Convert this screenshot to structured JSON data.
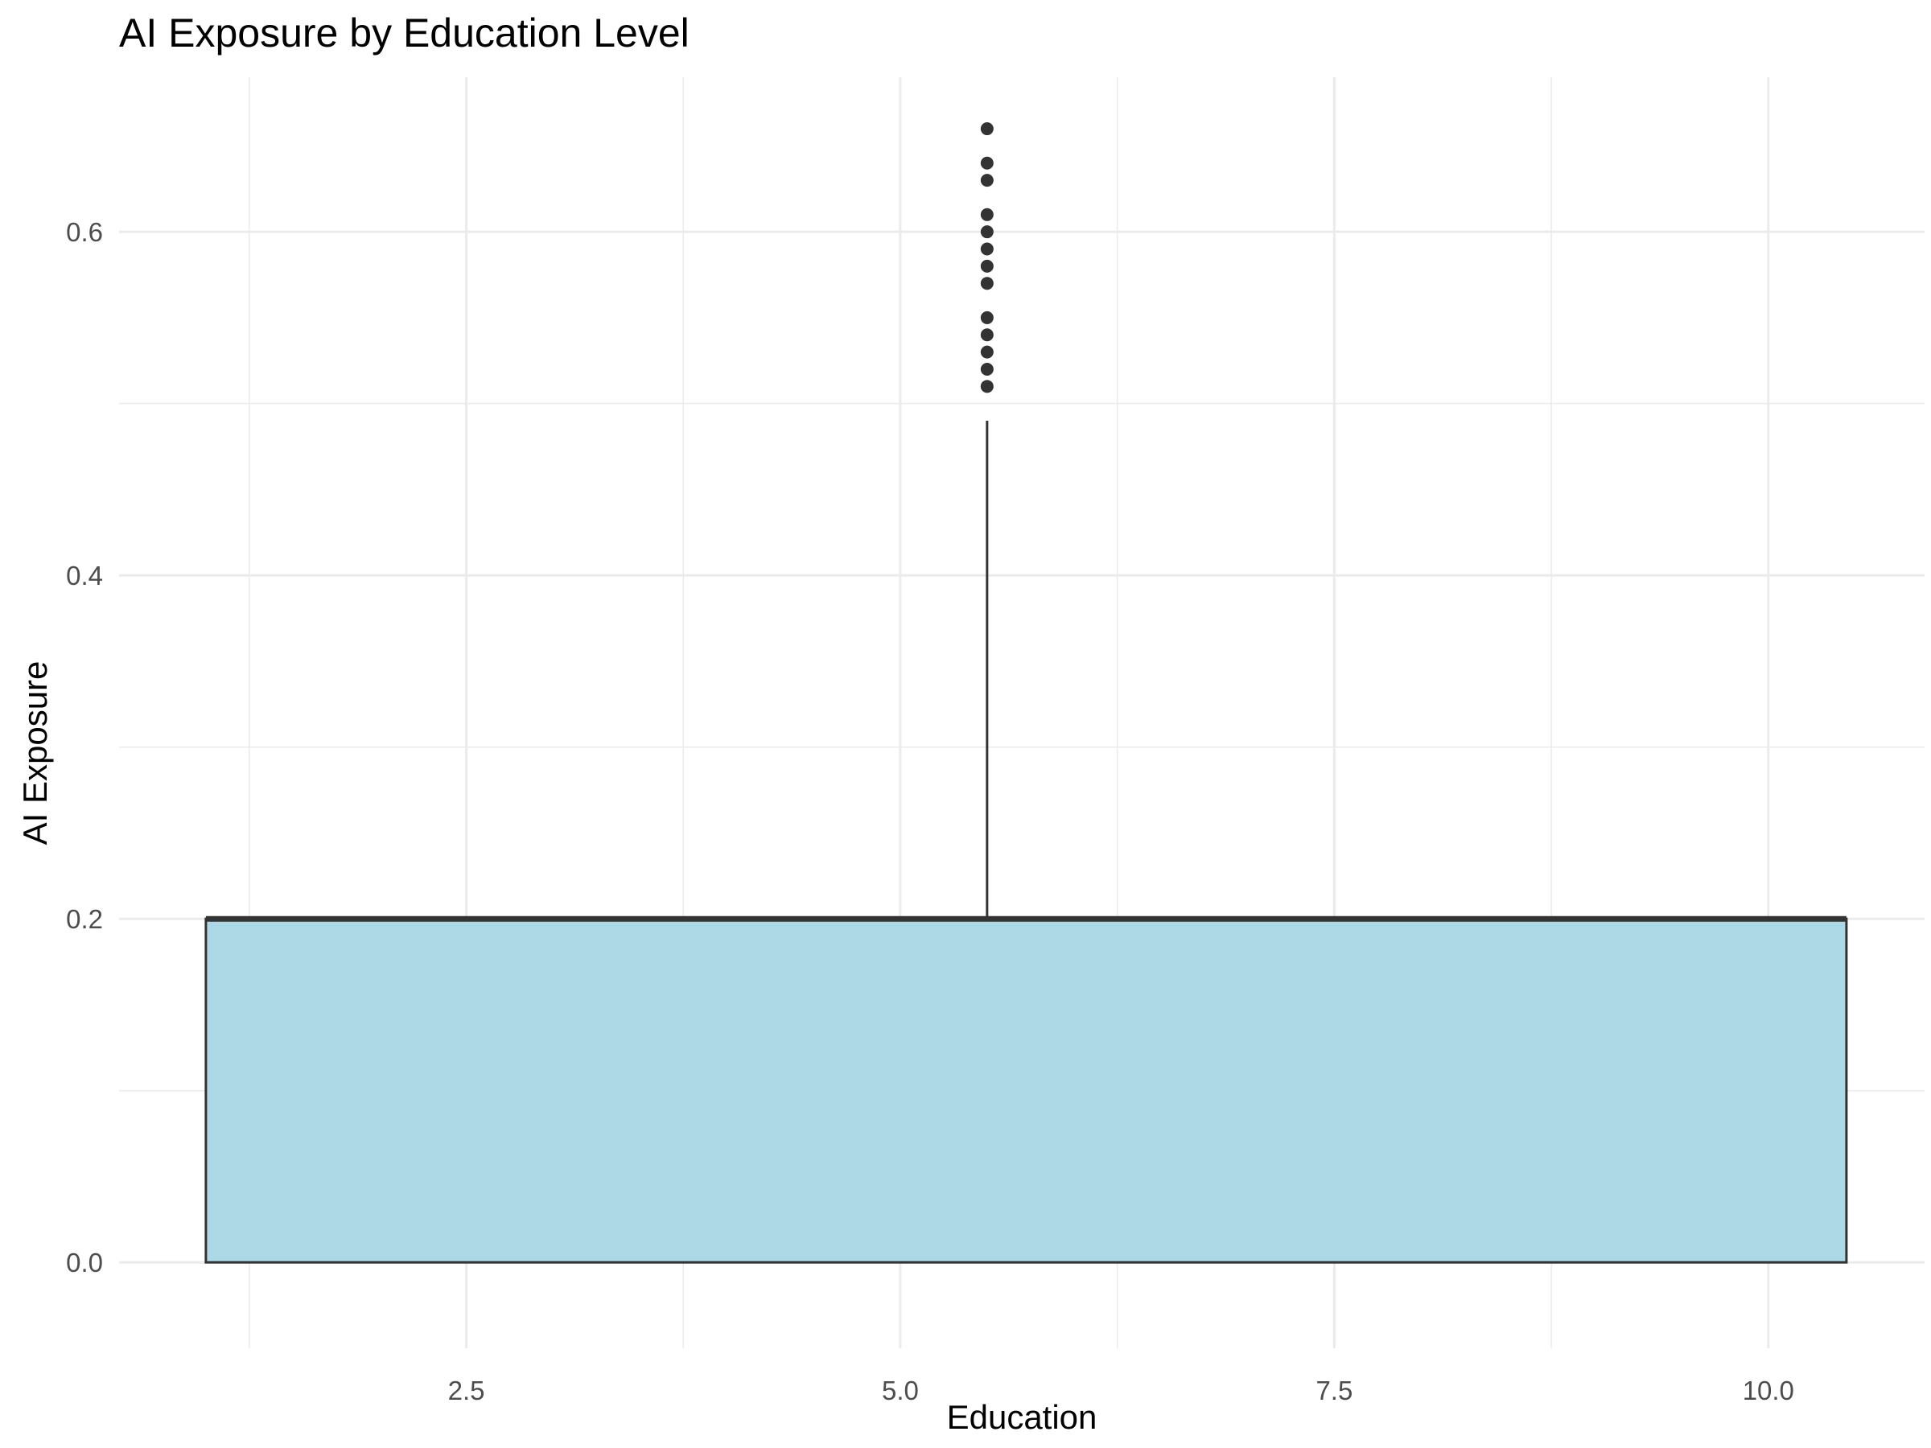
{
  "chart_data": {
    "type": "boxplot",
    "title": "AI Exposure by Education Level",
    "xlabel": "Education",
    "ylabel": "AI Exposure",
    "xlim": [
      0.5,
      10.9
    ],
    "ylim": [
      -0.05,
      0.69
    ],
    "x_ticks": [
      2.5,
      5.0,
      7.5,
      10.0
    ],
    "x_tick_labels": [
      "2.5",
      "5.0",
      "7.5",
      "10.0"
    ],
    "y_ticks": [
      0.0,
      0.2,
      0.4,
      0.6
    ],
    "y_tick_labels": [
      "0.0",
      "0.2",
      "0.4",
      "0.6"
    ],
    "grid": true,
    "legend": "none",
    "box": {
      "x_center": 5.5,
      "x_range": [
        1.0,
        10.45
      ],
      "q1": 0.0,
      "median": 0.2,
      "q3": 0.2,
      "whisker_low": 0.0,
      "whisker_high": 0.49,
      "fill": "#add8e6",
      "stroke": "#333333"
    },
    "outliers": [
      0.51,
      0.52,
      0.53,
      0.54,
      0.55,
      0.57,
      0.58,
      0.59,
      0.6,
      0.61,
      0.63,
      0.64,
      0.66
    ]
  }
}
